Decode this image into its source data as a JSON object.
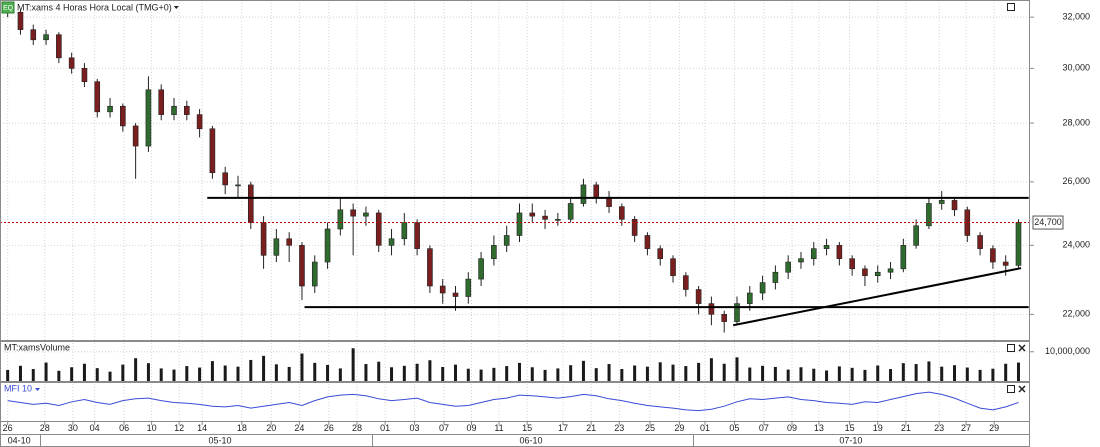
{
  "chart_data": [
    {
      "type": "candlestick",
      "title": "MT:xams 4 Horas Hora Local (TMG+0)",
      "badge": "EQ",
      "log": true,
      "grid": true,
      "up_color": "#2f6b2f",
      "down_color": "#7a1f1f",
      "ylim": [
        21300,
        32700
      ],
      "yticks": [
        {
          "value": 22000,
          "label": "22,000"
        },
        {
          "value": 24000,
          "label": "24,000"
        },
        {
          "value": 26000,
          "label": "26,000"
        },
        {
          "value": 28000,
          "label": "28,000"
        },
        {
          "value": 30000,
          "label": "30,000"
        },
        {
          "value": 32000,
          "label": "32,000"
        }
      ],
      "xlim": [
        -0.6,
        79.9
      ],
      "xticks": [
        {
          "value": 0,
          "label": "26"
        },
        {
          "value": 2.9,
          "label": "28"
        },
        {
          "value": 5.1,
          "label": "30"
        },
        {
          "value": 6.8,
          "label": "04"
        },
        {
          "value": 9.1,
          "label": "06"
        },
        {
          "value": 11.25,
          "label": "10"
        },
        {
          "value": 13.4,
          "label": "12"
        },
        {
          "value": 15.2,
          "label": "14"
        },
        {
          "value": 18.3,
          "label": "18"
        },
        {
          "value": 20.6,
          "label": "20"
        },
        {
          "value": 22.8,
          "label": "24"
        },
        {
          "value": 25.1,
          "label": "26"
        },
        {
          "value": 27.3,
          "label": "28"
        },
        {
          "value": 29.5,
          "label": "01"
        },
        {
          "value": 31.8,
          "label": "03"
        },
        {
          "value": 34.1,
          "label": "07"
        },
        {
          "value": 36.25,
          "label": "09"
        },
        {
          "value": 38.4,
          "label": "11"
        },
        {
          "value": 40.6,
          "label": "15"
        },
        {
          "value": 43.4,
          "label": "17"
        },
        {
          "value": 45.6,
          "label": "21"
        },
        {
          "value": 47.8,
          "label": "23"
        },
        {
          "value": 50.2,
          "label": "25"
        },
        {
          "value": 52.5,
          "label": "29"
        },
        {
          "value": 54.5,
          "label": "01"
        },
        {
          "value": 56.8,
          "label": "05"
        },
        {
          "value": 59.1,
          "label": "07"
        },
        {
          "value": 61.3,
          "label": "09"
        },
        {
          "value": 63.4,
          "label": "13"
        },
        {
          "value": 65.8,
          "label": "15"
        },
        {
          "value": 68,
          "label": "19"
        },
        {
          "value": 70.2,
          "label": "21"
        },
        {
          "value": 72.8,
          "label": "23"
        },
        {
          "value": 74.9,
          "label": "27"
        },
        {
          "value": 77.1,
          "label": "29"
        }
      ],
      "month_ticks": [
        {
          "value": 0.9,
          "label": "04-10"
        },
        {
          "value": 16.6,
          "label": "05-10"
        },
        {
          "value": 40.9,
          "label": "06-10"
        },
        {
          "value": 65.9,
          "label": "07-10"
        }
      ],
      "last_price": {
        "value": 24700,
        "label": "24,700",
        "color": "#c00000"
      },
      "lines": [
        {
          "x": [
            15.6,
            79.8
          ],
          "y": [
            25480,
            25480
          ]
        },
        {
          "x": [
            23.2,
            79.8
          ],
          "y": [
            22200,
            22200
          ]
        },
        {
          "x": [
            56.7,
            79.2
          ],
          "y": [
            21700,
            23320
          ]
        }
      ],
      "open": [
        32400,
        32200,
        31500,
        31100,
        31300,
        30400,
        30000,
        29500,
        28400,
        28600,
        27900,
        27200,
        29200,
        28300,
        28600,
        28300,
        27800,
        26300,
        25900,
        25900,
        24700,
        23700,
        24200,
        24000,
        22800,
        23500,
        24500,
        25100,
        24900,
        25000,
        24000,
        24200,
        24700,
        23900,
        22800,
        22600,
        22500,
        23000,
        23600,
        24000,
        24300,
        25000,
        24900,
        24800,
        24800,
        25300,
        25900,
        25500,
        25200,
        24800,
        24300,
        23900,
        23600,
        23100,
        22700,
        22300,
        22000,
        21800,
        22300,
        22600,
        22900,
        23200,
        23500,
        23600,
        23900,
        24000,
        23600,
        23300,
        23100,
        23200,
        23300,
        24000,
        24600,
        25300,
        25400,
        25100,
        24300,
        23900,
        23500,
        23400
      ],
      "high": [
        32600,
        32300,
        31700,
        31500,
        31400,
        30600,
        30200,
        29600,
        28900,
        28700,
        28000,
        29700,
        29400,
        28900,
        28800,
        28500,
        27900,
        26500,
        26200,
        26000,
        24900,
        24500,
        24400,
        24100,
        23700,
        24700,
        25500,
        25300,
        25200,
        25100,
        24500,
        25000,
        24800,
        24000,
        23000,
        22800,
        23200,
        23800,
        24300,
        24600,
        25300,
        25300,
        25100,
        25000,
        25500,
        26100,
        26000,
        25700,
        25300,
        24900,
        24400,
        24000,
        23700,
        23200,
        22800,
        22500,
        22100,
        22500,
        22800,
        23100,
        23400,
        23700,
        23800,
        24100,
        24200,
        24100,
        23700,
        23400,
        23400,
        23500,
        24200,
        24800,
        25500,
        25700,
        25500,
        25200,
        24400,
        24000,
        23700,
        24800
      ],
      "low": [
        32000,
        31300,
        30900,
        30900,
        30200,
        29800,
        29300,
        28200,
        28200,
        27700,
        26100,
        27000,
        28100,
        28100,
        28100,
        27500,
        26100,
        25600,
        25500,
        24500,
        23300,
        23500,
        23500,
        22400,
        22600,
        23300,
        24300,
        23700,
        24600,
        23800,
        23700,
        24000,
        23700,
        22600,
        22300,
        22100,
        22300,
        22800,
        23400,
        23800,
        24100,
        24700,
        24500,
        24600,
        24700,
        25200,
        25300,
        25000,
        24600,
        24100,
        23700,
        23400,
        22900,
        22500,
        22000,
        21700,
        21500,
        21700,
        22100,
        22400,
        22700,
        23000,
        23300,
        23400,
        23700,
        23400,
        23100,
        22800,
        22900,
        23000,
        23200,
        23900,
        24500,
        25100,
        24900,
        24100,
        23700,
        23300,
        23100,
        23300
      ],
      "close": [
        32200,
        31500,
        31100,
        31300,
        30400,
        30000,
        29500,
        28400,
        28600,
        27900,
        27200,
        29200,
        28300,
        28600,
        28300,
        27800,
        26300,
        25900,
        25900,
        24700,
        23700,
        24200,
        24000,
        22800,
        23500,
        24500,
        25100,
        24900,
        25000,
        24000,
        24200,
        24700,
        23900,
        22800,
        22600,
        22500,
        23000,
        23600,
        24000,
        24300,
        25000,
        24900,
        24800,
        24800,
        25300,
        25900,
        25500,
        25200,
        24800,
        24300,
        23900,
        23600,
        23100,
        22700,
        22300,
        22000,
        21800,
        22300,
        22600,
        22900,
        23200,
        23500,
        23600,
        23900,
        24000,
        23600,
        23300,
        23100,
        23200,
        23300,
        24000,
        24600,
        25300,
        25400,
        25100,
        24300,
        23900,
        23500,
        23400,
        24700
      ]
    },
    {
      "type": "bar",
      "title": "MT:xamsVolume",
      "color": "#1a1a1a",
      "ylim": [
        0,
        13000000
      ],
      "yticks": [
        {
          "value": 10000000,
          "label": "10,000,000"
        }
      ],
      "values": [
        3800000,
        5200000,
        4100000,
        6300000,
        3500000,
        4700000,
        5900000,
        4400000,
        3200000,
        5600000,
        7800000,
        6100000,
        4300000,
        3900000,
        5100000,
        4600000,
        6800000,
        5300000,
        4900000,
        7200000,
        8600000,
        5700000,
        4800000,
        9400000,
        6200000,
        5500000,
        4300000,
        11200000,
        5800000,
        6600000,
        4700000,
        5200000,
        5900000,
        7100000,
        4800000,
        5600000,
        4200000,
        3900000,
        4500000,
        5100000,
        6200000,
        4700000,
        3800000,
        4300000,
        5400000,
        6900000,
        4400000,
        5800000,
        4100000,
        5300000,
        4900000,
        6400000,
        5600000,
        5100000,
        6200000,
        7800000,
        5900000,
        8100000,
        4600000,
        5200000,
        4800000,
        3900000,
        4700000,
        4200000,
        3600000,
        5000000,
        4500000,
        3800000,
        5300000,
        4100000,
        6100000,
        5800000,
        6700000,
        4900000,
        5400000,
        4600000,
        3800000,
        4200000,
        5900000,
        6300000
      ]
    },
    {
      "type": "line",
      "title": "MFI 10",
      "color": "#3a4bd6",
      "ylim": [
        0,
        100
      ],
      "values": [
        55,
        50,
        45,
        48,
        42,
        52,
        58,
        50,
        45,
        55,
        60,
        62,
        55,
        50,
        48,
        45,
        40,
        38,
        42,
        35,
        40,
        45,
        50,
        42,
        55,
        65,
        70,
        72,
        68,
        60,
        55,
        58,
        62,
        50,
        45,
        40,
        42,
        50,
        58,
        62,
        70,
        68,
        65,
        62,
        66,
        72,
        68,
        60,
        55,
        48,
        42,
        38,
        35,
        30,
        28,
        32,
        40,
        52,
        60,
        58,
        62,
        65,
        58,
        55,
        50,
        48,
        45,
        52,
        50,
        58,
        66,
        74,
        78,
        72,
        62,
        48,
        35,
        30,
        38,
        50
      ]
    }
  ]
}
